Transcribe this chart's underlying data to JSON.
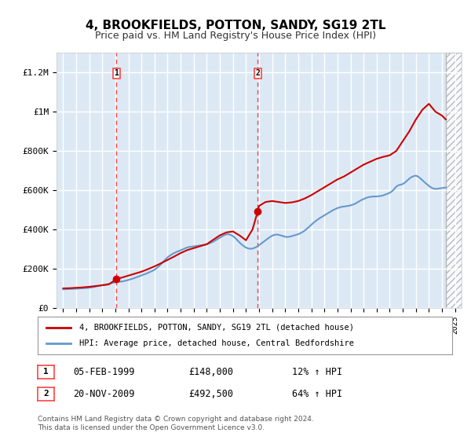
{
  "title": "4, BROOKFIELDS, POTTON, SANDY, SG19 2TL",
  "subtitle": "Price paid vs. HM Land Registry's House Price Index (HPI)",
  "background_color": "#ffffff",
  "plot_bg_color": "#dce9f5",
  "hatch_color": "#c0c0c0",
  "grid_color": "#ffffff",
  "sale1_date": 1999.09,
  "sale1_price": 148000,
  "sale1_label": "1",
  "sale2_date": 2009.9,
  "sale2_price": 492500,
  "sale2_label": "2",
  "vline_color": "#ff4444",
  "sale_dot_color": "#cc0000",
  "hpi_line_color": "#6699cc",
  "price_line_color": "#cc0000",
  "legend_label_price": "4, BROOKFIELDS, POTTON, SANDY, SG19 2TL (detached house)",
  "legend_label_hpi": "HPI: Average price, detached house, Central Bedfordshire",
  "annotation1_date": "05-FEB-1999",
  "annotation1_price": "£148,000",
  "annotation1_pct": "12% ↑ HPI",
  "annotation2_date": "20-NOV-2009",
  "annotation2_price": "£492,500",
  "annotation2_pct": "64% ↑ HPI",
  "footer": "Contains HM Land Registry data © Crown copyright and database right 2024.\nThis data is licensed under the Open Government Licence v3.0.",
  "ylim": [
    0,
    1300000
  ],
  "yticks": [
    0,
    200000,
    400000,
    600000,
    800000,
    1000000,
    1200000
  ],
  "xlim_start": 1994.5,
  "xlim_end": 2025.5,
  "xticks": [
    1995,
    1996,
    1997,
    1998,
    1999,
    2000,
    2001,
    2002,
    2003,
    2004,
    2005,
    2006,
    2007,
    2008,
    2009,
    2010,
    2011,
    2012,
    2013,
    2014,
    2015,
    2016,
    2017,
    2018,
    2019,
    2020,
    2021,
    2022,
    2023,
    2024,
    2025
  ],
  "hpi_years": [
    1995.0,
    1995.1,
    1995.2,
    1995.3,
    1995.4,
    1995.5,
    1995.6,
    1995.7,
    1995.8,
    1995.9,
    1996.0,
    1996.1,
    1996.2,
    1996.3,
    1996.4,
    1996.5,
    1996.6,
    1996.7,
    1996.8,
    1996.9,
    1997.0,
    1997.1,
    1997.2,
    1997.3,
    1997.4,
    1997.5,
    1997.6,
    1997.7,
    1997.8,
    1997.9,
    1998.0,
    1998.1,
    1998.2,
    1998.3,
    1998.4,
    1998.5,
    1998.6,
    1998.7,
    1998.8,
    1998.9,
    1999.0,
    1999.1,
    1999.2,
    1999.3,
    1999.4,
    1999.5,
    1999.6,
    1999.7,
    1999.8,
    1999.9,
    2000.0,
    2000.1,
    2000.2,
    2000.3,
    2000.4,
    2000.5,
    2000.6,
    2000.7,
    2000.8,
    2000.9,
    2001.0,
    2001.1,
    2001.2,
    2001.3,
    2001.4,
    2001.5,
    2001.6,
    2001.7,
    2001.8,
    2001.9,
    2002.0,
    2002.1,
    2002.2,
    2002.3,
    2002.4,
    2002.5,
    2002.6,
    2002.7,
    2002.8,
    2002.9,
    2003.0,
    2003.1,
    2003.2,
    2003.3,
    2003.4,
    2003.5,
    2003.6,
    2003.7,
    2003.8,
    2003.9,
    2004.0,
    2004.1,
    2004.2,
    2004.3,
    2004.4,
    2004.5,
    2004.6,
    2004.7,
    2004.8,
    2004.9,
    2005.0,
    2005.1,
    2005.2,
    2005.3,
    2005.4,
    2005.5,
    2005.6,
    2005.7,
    2005.8,
    2005.9,
    2006.0,
    2006.1,
    2006.2,
    2006.3,
    2006.4,
    2006.5,
    2006.6,
    2006.7,
    2006.8,
    2006.9,
    2007.0,
    2007.1,
    2007.2,
    2007.3,
    2007.4,
    2007.5,
    2007.6,
    2007.7,
    2007.8,
    2007.9,
    2008.0,
    2008.1,
    2008.2,
    2008.3,
    2008.4,
    2008.5,
    2008.6,
    2008.7,
    2008.8,
    2008.9,
    2009.0,
    2009.1,
    2009.2,
    2009.3,
    2009.4,
    2009.5,
    2009.6,
    2009.7,
    2009.8,
    2009.9,
    2010.0,
    2010.1,
    2010.2,
    2010.3,
    2010.4,
    2010.5,
    2010.6,
    2010.7,
    2010.8,
    2010.9,
    2011.0,
    2011.1,
    2011.2,
    2011.3,
    2011.4,
    2011.5,
    2011.6,
    2011.7,
    2011.8,
    2011.9,
    2012.0,
    2012.1,
    2012.2,
    2012.3,
    2012.4,
    2012.5,
    2012.6,
    2012.7,
    2012.8,
    2012.9,
    2013.0,
    2013.1,
    2013.2,
    2013.3,
    2013.4,
    2013.5,
    2013.6,
    2013.7,
    2013.8,
    2013.9,
    2014.0,
    2014.1,
    2014.2,
    2014.3,
    2014.4,
    2014.5,
    2014.6,
    2014.7,
    2014.8,
    2014.9,
    2015.0,
    2015.1,
    2015.2,
    2015.3,
    2015.4,
    2015.5,
    2015.6,
    2015.7,
    2015.8,
    2015.9,
    2016.0,
    2016.1,
    2016.2,
    2016.3,
    2016.4,
    2016.5,
    2016.6,
    2016.7,
    2016.8,
    2016.9,
    2017.0,
    2017.1,
    2017.2,
    2017.3,
    2017.4,
    2017.5,
    2017.6,
    2017.7,
    2017.8,
    2017.9,
    2018.0,
    2018.1,
    2018.2,
    2018.3,
    2018.4,
    2018.5,
    2018.6,
    2018.7,
    2018.8,
    2018.9,
    2019.0,
    2019.1,
    2019.2,
    2019.3,
    2019.4,
    2019.5,
    2019.6,
    2019.7,
    2019.8,
    2019.9,
    2020.0,
    2020.1,
    2020.2,
    2020.3,
    2020.4,
    2020.5,
    2020.6,
    2020.7,
    2020.8,
    2020.9,
    2021.0,
    2021.1,
    2021.2,
    2021.3,
    2021.4,
    2021.5,
    2021.6,
    2021.7,
    2021.8,
    2021.9,
    2022.0,
    2022.1,
    2022.2,
    2022.3,
    2022.4,
    2022.5,
    2022.6,
    2022.7,
    2022.8,
    2022.9,
    2023.0,
    2023.1,
    2023.2,
    2023.3,
    2023.4,
    2023.5,
    2023.6,
    2023.7,
    2023.8,
    2023.9,
    2024.0,
    2024.1,
    2024.2,
    2024.3
  ],
  "hpi_values": [
    95000,
    95500,
    96000,
    96200,
    96500,
    96800,
    97000,
    97200,
    97400,
    97600,
    98000,
    98500,
    99000,
    99500,
    100000,
    100500,
    101000,
    101500,
    102000,
    102500,
    103000,
    104000,
    105000,
    106000,
    107500,
    109000,
    110500,
    112000,
    113500,
    115000,
    116000,
    117500,
    119000,
    120500,
    122000,
    123500,
    125000,
    126500,
    128000,
    129500,
    131000,
    132500,
    133000,
    133500,
    134000,
    135000,
    136500,
    138000,
    139500,
    141000,
    143000,
    145000,
    147000,
    149000,
    151000,
    153500,
    156000,
    158500,
    161000,
    163500,
    166000,
    168500,
    171000,
    173500,
    176000,
    179000,
    182000,
    185000,
    188000,
    191000,
    195000,
    200000,
    205000,
    211000,
    217000,
    224000,
    231000,
    238000,
    245000,
    252000,
    258000,
    263000,
    268000,
    272000,
    276000,
    280000,
    283000,
    286000,
    289000,
    291000,
    294000,
    297000,
    300000,
    303000,
    306000,
    308000,
    310000,
    311000,
    312000,
    313000,
    314000,
    315000,
    316000,
    317000,
    318000,
    319000,
    320000,
    321000,
    322000,
    323000,
    325000,
    327000,
    329000,
    332000,
    335000,
    338000,
    342000,
    346000,
    350000,
    354000,
    358000,
    362000,
    366000,
    370000,
    373000,
    375000,
    376000,
    375000,
    373000,
    370000,
    366000,
    361000,
    355000,
    348000,
    341000,
    334000,
    328000,
    322000,
    317000,
    312000,
    308000,
    305000,
    303000,
    302000,
    302000,
    303000,
    305000,
    308000,
    311000,
    315000,
    320000,
    325000,
    330000,
    335000,
    340000,
    345000,
    350000,
    355000,
    360000,
    364000,
    368000,
    371000,
    373000,
    374000,
    374000,
    373000,
    371000,
    369000,
    367000,
    365000,
    363000,
    362000,
    362000,
    363000,
    364000,
    366000,
    368000,
    370000,
    372000,
    374000,
    376000,
    379000,
    382000,
    386000,
    390000,
    395000,
    400000,
    406000,
    412000,
    418000,
    424000,
    430000,
    436000,
    441000,
    446000,
    451000,
    456000,
    460000,
    464000,
    468000,
    472000,
    476000,
    480000,
    484000,
    488000,
    492000,
    496000,
    500000,
    503000,
    506000,
    509000,
    511000,
    513000,
    515000,
    516000,
    517000,
    518000,
    519000,
    520000,
    521000,
    523000,
    525000,
    527000,
    530000,
    533000,
    537000,
    541000,
    545000,
    549000,
    552000,
    555000,
    558000,
    561000,
    563000,
    565000,
    566000,
    567000,
    568000,
    568000,
    568000,
    568000,
    569000,
    570000,
    571000,
    572000,
    574000,
    576000,
    579000,
    581000,
    584000,
    587000,
    591000,
    596000,
    603000,
    611000,
    618000,
    623000,
    626000,
    628000,
    629000,
    632000,
    636000,
    641000,
    647000,
    653000,
    659000,
    664000,
    668000,
    671000,
    673000,
    674000,
    672000,
    668000,
    663000,
    657000,
    651000,
    645000,
    639000,
    633000,
    628000,
    622000,
    617000,
    613000,
    610000,
    608000,
    607000,
    607000,
    608000,
    609000,
    610000,
    611000,
    612000,
    613000,
    614000
  ],
  "price_years": [
    1995.0,
    1995.5,
    1996.0,
    1996.5,
    1997.0,
    1997.5,
    1998.0,
    1998.5,
    1999.09,
    1999.5,
    2000.0,
    2000.5,
    2001.0,
    2001.5,
    2002.0,
    2002.5,
    2003.0,
    2003.5,
    2004.0,
    2004.5,
    2005.0,
    2005.5,
    2006.0,
    2006.5,
    2007.0,
    2007.5,
    2008.0,
    2008.5,
    2009.0,
    2009.5,
    2009.9,
    2010.0,
    2010.5,
    2011.0,
    2011.5,
    2012.0,
    2012.5,
    2013.0,
    2013.5,
    2014.0,
    2014.5,
    2015.0,
    2015.5,
    2016.0,
    2016.5,
    2017.0,
    2017.5,
    2018.0,
    2018.5,
    2019.0,
    2019.5,
    2020.0,
    2020.5,
    2021.0,
    2021.5,
    2022.0,
    2022.5,
    2023.0,
    2023.5,
    2024.0,
    2024.3
  ],
  "price_values": [
    100000,
    101000,
    103000,
    105000,
    108000,
    112000,
    116000,
    120000,
    148000,
    155000,
    165000,
    175000,
    185000,
    198000,
    212000,
    228000,
    245000,
    262000,
    280000,
    295000,
    305000,
    315000,
    325000,
    348000,
    370000,
    385000,
    390000,
    370000,
    345000,
    400000,
    492500,
    520000,
    540000,
    545000,
    540000,
    535000,
    538000,
    545000,
    558000,
    575000,
    595000,
    615000,
    635000,
    655000,
    670000,
    690000,
    710000,
    730000,
    745000,
    760000,
    770000,
    778000,
    800000,
    850000,
    900000,
    960000,
    1010000,
    1040000,
    1000000,
    980000,
    960000
  ]
}
